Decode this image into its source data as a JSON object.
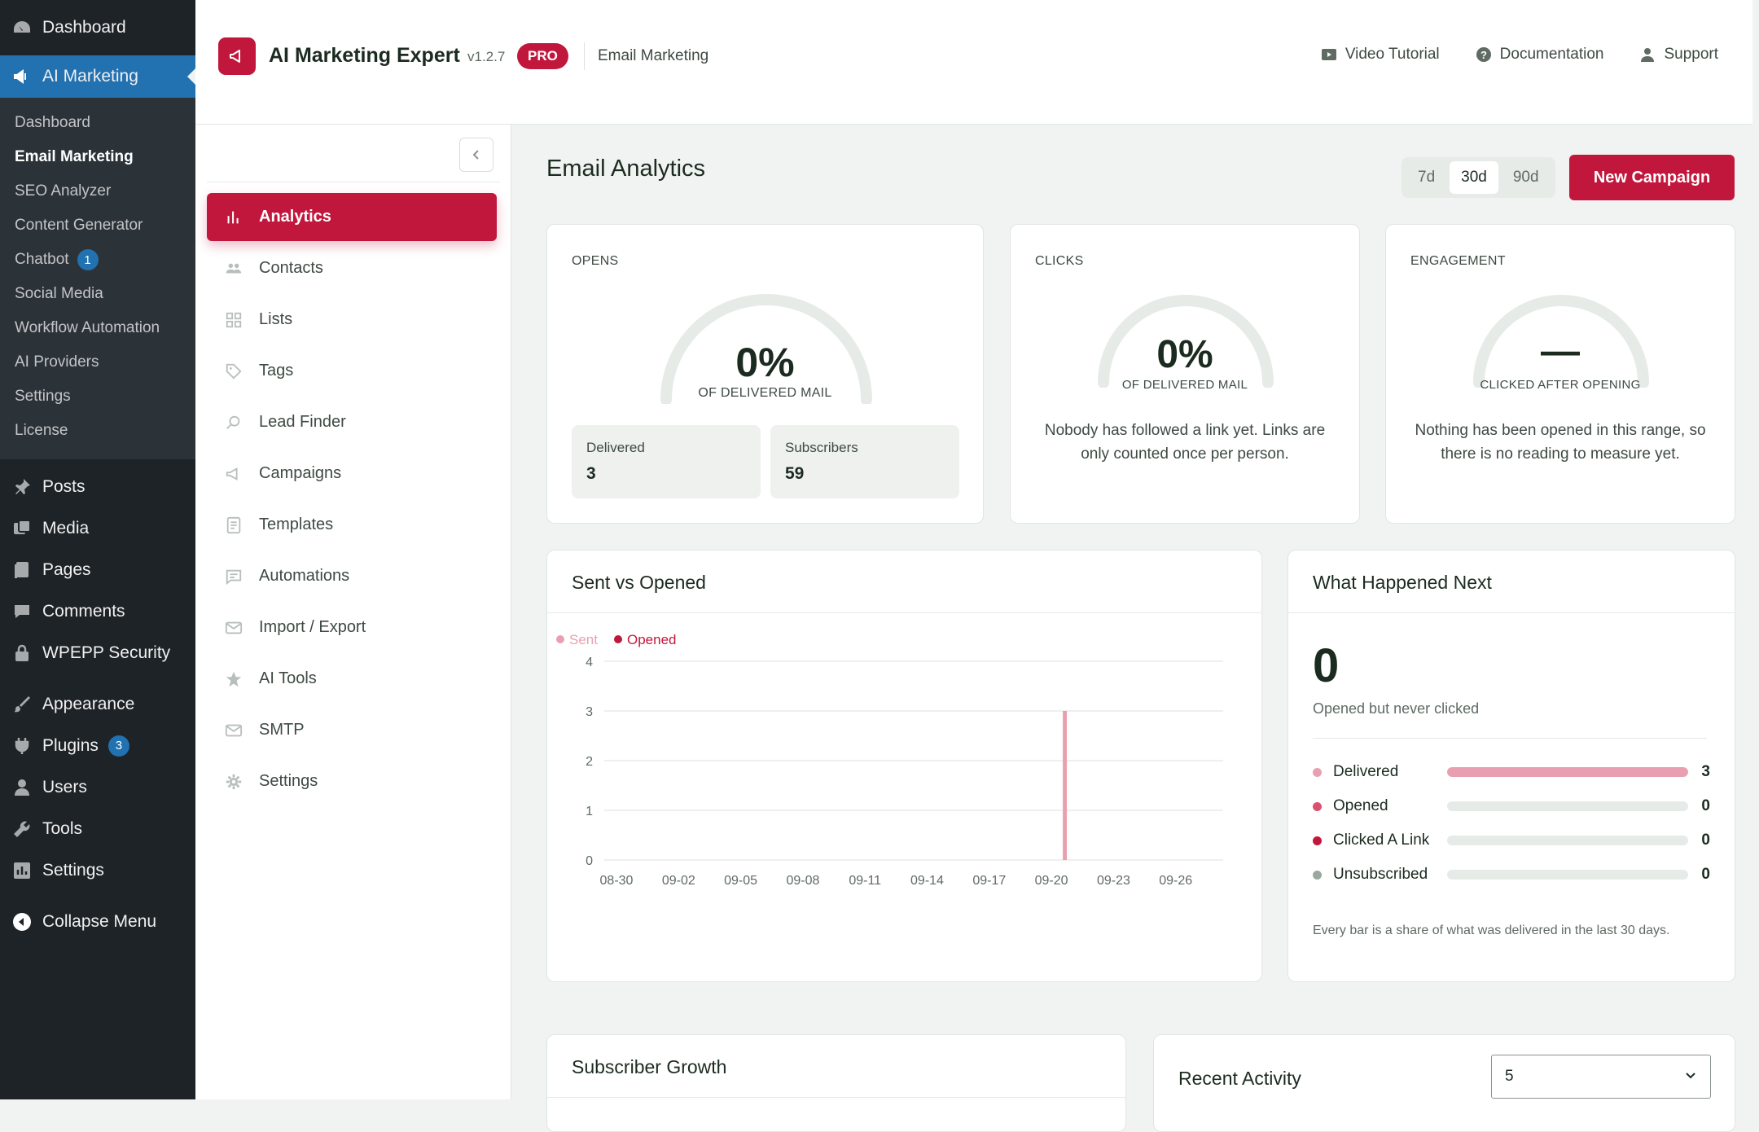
{
  "wp_menu": {
    "dashboard": "Dashboard",
    "ai_marketing": "AI Marketing",
    "sub": [
      {
        "label": "Dashboard",
        "current": false,
        "badge": ""
      },
      {
        "label": "Email Marketing",
        "current": true,
        "badge": ""
      },
      {
        "label": "SEO Analyzer",
        "current": false,
        "badge": ""
      },
      {
        "label": "Content Generator",
        "current": false,
        "badge": ""
      },
      {
        "label": "Chatbot",
        "current": false,
        "badge": "1"
      },
      {
        "label": "Social Media",
        "current": false,
        "badge": ""
      },
      {
        "label": "Workflow Automation",
        "current": false,
        "badge": ""
      },
      {
        "label": "AI Providers",
        "current": false,
        "badge": ""
      },
      {
        "label": "Settings",
        "current": false,
        "badge": ""
      },
      {
        "label": "License",
        "current": false,
        "badge": ""
      }
    ],
    "items": [
      {
        "label": "Posts",
        "icon": "pin-icon",
        "badge": ""
      },
      {
        "label": "Media",
        "icon": "media-icon",
        "badge": ""
      },
      {
        "label": "Pages",
        "icon": "pages-icon",
        "badge": ""
      },
      {
        "label": "Comments",
        "icon": "comment-icon",
        "badge": ""
      },
      {
        "label": "WPEPP Security",
        "icon": "lock-icon",
        "badge": ""
      },
      {
        "label": "Appearance",
        "icon": "brush-icon",
        "badge": ""
      },
      {
        "label": "Plugins",
        "icon": "plug-icon",
        "badge": "3"
      },
      {
        "label": "Users",
        "icon": "user-icon",
        "badge": ""
      },
      {
        "label": "Tools",
        "icon": "wrench-icon",
        "badge": ""
      },
      {
        "label": "Settings",
        "icon": "settings-icon",
        "badge": ""
      }
    ],
    "collapse": "Collapse Menu"
  },
  "header": {
    "brand": "AI Marketing Expert",
    "version": "v1.2.7",
    "pro": "PRO",
    "crumb": "Email Marketing",
    "links": {
      "video": "Video Tutorial",
      "docs": "Documentation",
      "support": "Support"
    }
  },
  "sidebar": {
    "items": [
      {
        "label": "Analytics",
        "icon": "bar-chart-icon",
        "active": true
      },
      {
        "label": "Contacts",
        "icon": "contacts-icon",
        "active": false
      },
      {
        "label": "Lists",
        "icon": "grid-icon",
        "active": false
      },
      {
        "label": "Tags",
        "icon": "tag-icon",
        "active": false
      },
      {
        "label": "Lead Finder",
        "icon": "search-icon",
        "active": false
      },
      {
        "label": "Campaigns",
        "icon": "megaphone-icon",
        "active": false
      },
      {
        "label": "Templates",
        "icon": "document-icon",
        "active": false
      },
      {
        "label": "Automations",
        "icon": "chat-icon",
        "active": false
      },
      {
        "label": "Import / Export",
        "icon": "envelope-icon",
        "active": false
      },
      {
        "label": "AI Tools",
        "icon": "star-icon",
        "active": false
      },
      {
        "label": "SMTP",
        "icon": "mail-icon",
        "active": false
      },
      {
        "label": "Settings",
        "icon": "gear-icon",
        "active": false
      }
    ]
  },
  "main": {
    "title": "Email Analytics",
    "ranges": [
      {
        "label": "7d",
        "on": false
      },
      {
        "label": "30d",
        "on": true
      },
      {
        "label": "90d",
        "on": false
      }
    ],
    "new_campaign": "New Campaign",
    "opens": {
      "label": "OPENS",
      "value": "0%",
      "sub": "OF DELIVERED MAIL",
      "fraction": 0,
      "delivered_label": "Delivered",
      "delivered": "3",
      "subscribers_label": "Subscribers",
      "subscribers": "59"
    },
    "clicks": {
      "label": "CLICKS",
      "value": "0%",
      "sub": "OF DELIVERED MAIL",
      "fraction": 0,
      "desc": "Nobody has followed a link yet. Links are only counted once per person."
    },
    "engagement": {
      "label": "ENGAGEMENT",
      "value": "—",
      "sub": "CLICKED AFTER OPENING",
      "desc": "Nothing has been opened in this range, so there is no reading to measure yet."
    },
    "sent_vs_opened": {
      "title": "Sent vs Opened"
    },
    "what_next": {
      "title": "What Happened Next",
      "count": "0",
      "count_label": "Opened but never clicked",
      "rows": [
        {
          "label": "Delivered",
          "value": "3",
          "share": 1,
          "color": "#e8a0b0"
        },
        {
          "label": "Opened",
          "value": "0",
          "share": 0,
          "color": "#d9516f"
        },
        {
          "label": "Clicked A Link",
          "value": "0",
          "share": 0,
          "color": "#c2173d"
        },
        {
          "label": "Unsubscribed",
          "value": "0",
          "share": 0,
          "color": "#9aa89f"
        }
      ],
      "note": "Every bar is a share of what was delivered in the last 30 days."
    },
    "subscriber_growth": {
      "title": "Subscriber Growth"
    },
    "recent_activity": {
      "title": "Recent Activity",
      "select_value": "5"
    }
  },
  "chart_data": {
    "type": "bar",
    "series": [
      {
        "name": "Sent",
        "color": "#e8a0b0",
        "points": [
          [
            "09-20",
            3
          ]
        ]
      },
      {
        "name": "Opened",
        "color": "#c2173d",
        "points": []
      }
    ],
    "x_ticks": [
      "08-30",
      "09-02",
      "09-05",
      "09-08",
      "09-11",
      "09-14",
      "09-17",
      "09-20",
      "09-23",
      "09-26"
    ],
    "y_ticks": [
      0,
      1,
      2,
      3,
      4
    ],
    "ylim": [
      0,
      4
    ],
    "legend_position": "top-left",
    "grid": true
  }
}
